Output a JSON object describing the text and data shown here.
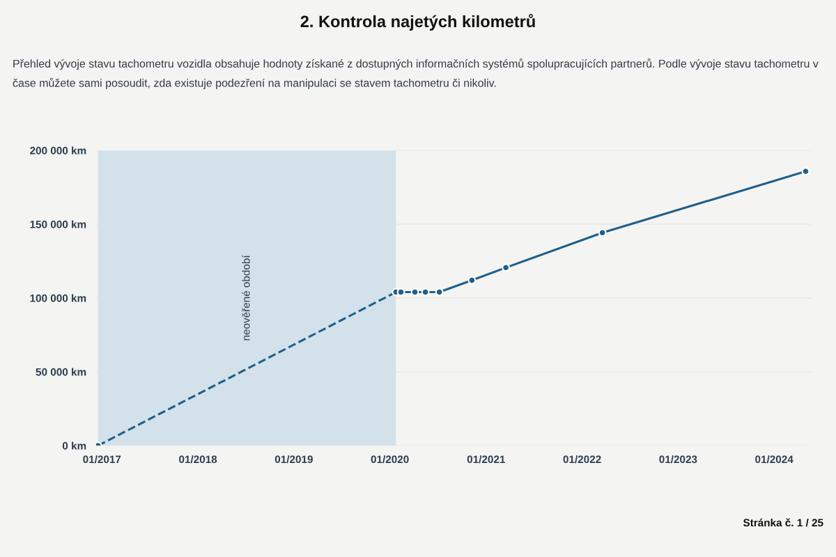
{
  "chart_data": {
    "type": "line",
    "title": "2. Kontrola najetých kilometrů",
    "subtitle": "Přehled vývoje stavu tachometru vozidla obsahuje hodnoty získané z dostupných informačních systémů spolupracujících partnerů. Podle vývoje stavu tachometru v čase můžete sami posoudit, zda existuje podezření na manipulaci se stavem tachometru či nikoliv.",
    "series": [
      {
        "color": "#1f5f8b",
        "line_style": "dashed",
        "x": [
          "2016-12-17",
          "2020-01-24"
        ],
        "values": [
          0,
          104000
        ]
      },
      {
        "color": "#1f5f8b",
        "line_style": "solid",
        "x": [
          "2020-02-12",
          "2020-04-05",
          "2020-05-15",
          "2020-07-07",
          "2020-11-08",
          "2021-03-17",
          "2022-03-19",
          "2024-04-30"
        ],
        "values": [
          104000,
          104000,
          104000,
          104000,
          112000,
          120600,
          144200,
          185800
        ]
      }
    ],
    "marker": "circle",
    "xlim": [
      "2016-12-10",
      "2024-05-20"
    ],
    "xticks": [
      {
        "value": "2017-01-01",
        "label": "01/2017"
      },
      {
        "value": "2018-01-01",
        "label": "01/2018"
      },
      {
        "value": "2019-01-01",
        "label": "01/2019"
      },
      {
        "value": "2020-01-01",
        "label": "01/2020"
      },
      {
        "value": "2021-01-01",
        "label": "01/2021"
      },
      {
        "value": "2022-01-01",
        "label": "01/2022"
      },
      {
        "value": "2023-01-01",
        "label": "01/2023"
      },
      {
        "value": "2024-01-01",
        "label": "01/2024"
      }
    ],
    "ylim": [
      0,
      200000
    ],
    "yticks": [
      {
        "value": 0,
        "label": "0 km"
      },
      {
        "value": 50000,
        "label": "50 000 km"
      },
      {
        "value": 100000,
        "label": "100 000 km"
      },
      {
        "value": 150000,
        "label": "150 000 km"
      },
      {
        "value": 200000,
        "label": "200 000 km"
      }
    ],
    "bands": [
      {
        "axis": "x",
        "from": "2016-12-17",
        "to": "2020-01-24",
        "label": "neověřené období",
        "color": "#d3e1ea"
      }
    ],
    "grid": "y",
    "legend": false,
    "annotations": [
      "Stránka č. 1 / 25"
    ]
  }
}
